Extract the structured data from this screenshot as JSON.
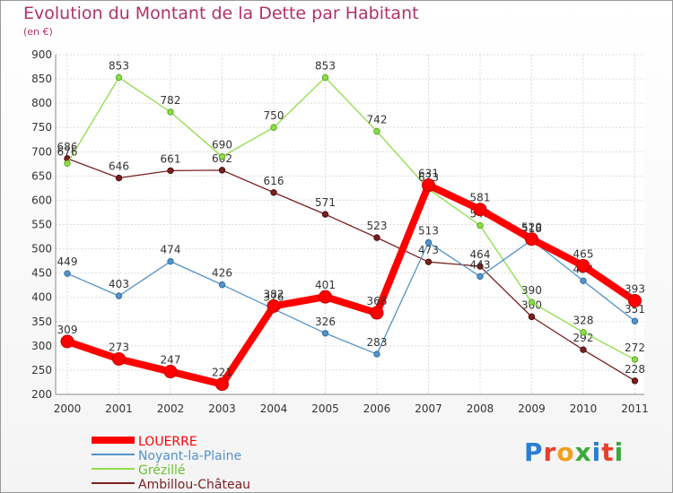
{
  "header": {
    "title": "Evolution du Montant de la Dette par Habitant",
    "unit": "(en €)"
  },
  "logo": {
    "text": "Proxiti"
  },
  "chart_data": {
    "type": "line",
    "title": "Evolution du Montant de la Dette par Habitant",
    "subtitle": "(en €)",
    "x": [
      "2000",
      "2001",
      "2002",
      "2003",
      "2004",
      "2005",
      "2006",
      "2007",
      "2008",
      "2009",
      "2010",
      "2011"
    ],
    "ylim": [
      200,
      900
    ],
    "yticks": [
      200,
      250,
      300,
      350,
      400,
      450,
      500,
      550,
      600,
      650,
      700,
      750,
      800,
      850,
      900
    ],
    "grid": true,
    "legend_position": "bottom-left",
    "series": [
      {
        "name": "Ambillou-Château",
        "color": "#7a2020",
        "values": [
          686,
          646,
          661,
          662,
          616,
          571,
          523,
          473,
          464,
          360,
          292,
          228
        ]
      },
      {
        "name": "Grézillé",
        "color": "#8fdc4a",
        "values": [
          676,
          853,
          782,
          690,
          750,
          853,
          742,
          623,
          548,
          390,
          328,
          272
        ]
      },
      {
        "name": "Noyant-la-Plaine",
        "color": "#5592c8",
        "values": [
          449,
          403,
          474,
          426,
          376,
          326,
          283,
          513,
          443,
          518,
          434,
          351
        ]
      },
      {
        "name": "LOUERRE",
        "color": "#ff0000",
        "values": [
          309,
          273,
          247,
          221,
          382,
          401,
          368,
          631,
          581,
          520,
          465,
          393
        ]
      }
    ],
    "legend_order": [
      "LOUERRE",
      "Noyant-la-Plaine",
      "Grézillé",
      "Ambillou-Château"
    ]
  }
}
